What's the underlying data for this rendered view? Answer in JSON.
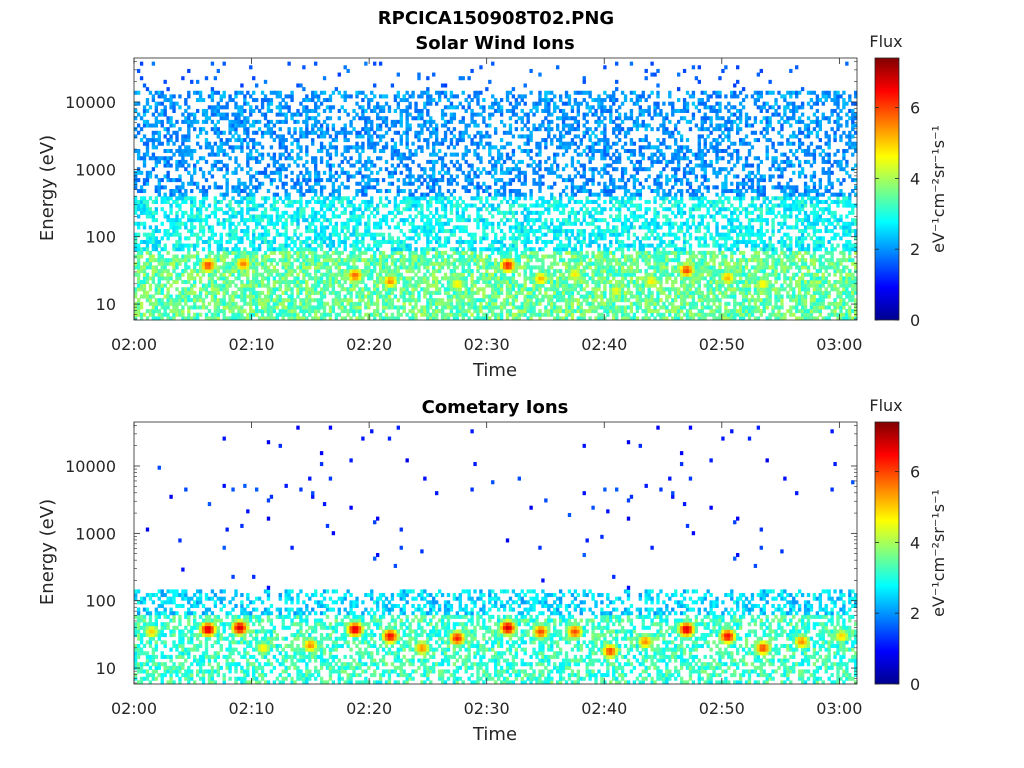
{
  "figure_title": "RPCICA150908T02.PNG",
  "colorbar": {
    "title": "Flux",
    "label": "eV⁻¹cm⁻²sr⁻¹s⁻¹",
    "ticks": [
      "0",
      "2",
      "4",
      "6"
    ],
    "range": [
      0,
      7.4
    ],
    "colormap": "jet"
  },
  "chart_data": [
    {
      "type": "heatmap",
      "title": "Solar Wind Ions",
      "xlabel": "Time",
      "ylabel": "Energy (eV)",
      "x_ticks": [
        "02:00",
        "02:10",
        "02:20",
        "02:30",
        "02:40",
        "02:50",
        "03:00"
      ],
      "y_ticks": [
        "10",
        "100",
        "1000",
        "10000"
      ],
      "xlim_minutes": [
        0,
        61.5
      ],
      "ylim_eV": [
        5.8,
        45000
      ],
      "y_scale": "log",
      "flux_range": [
        0,
        7.4
      ],
      "structure": {
        "low_energy_band_eV": [
          6,
          60
        ],
        "low_energy_flux": 3.5,
        "medium_band_eV": [
          60,
          400
        ],
        "medium_flux": 2.8,
        "high_band_eV": [
          400,
          15000
        ],
        "high_flux": 2.0,
        "sparse_band_eV": [
          15000,
          40000
        ],
        "sparse_flux": 1.6
      },
      "peaks": [
        {
          "t": 6.3,
          "e": 38,
          "flux": 6.0
        },
        {
          "t": 9.3,
          "e": 40,
          "flux": 5.6
        },
        {
          "t": 18.8,
          "e": 27,
          "flux": 5.8
        },
        {
          "t": 21.8,
          "e": 22,
          "flux": 5.5
        },
        {
          "t": 27.5,
          "e": 20,
          "flux": 4.8
        },
        {
          "t": 31.8,
          "e": 38,
          "flux": 6.3
        },
        {
          "t": 34.6,
          "e": 24,
          "flux": 5.2
        },
        {
          "t": 37.5,
          "e": 28,
          "flux": 4.8
        },
        {
          "t": 41.0,
          "e": 16,
          "flux": 4.6
        },
        {
          "t": 44.0,
          "e": 22,
          "flux": 4.8
        },
        {
          "t": 47.0,
          "e": 32,
          "flux": 6.0
        },
        {
          "t": 50.5,
          "e": 25,
          "flux": 5.2
        },
        {
          "t": 53.5,
          "e": 20,
          "flux": 4.8
        }
      ]
    },
    {
      "type": "heatmap",
      "title": "Cometary Ions",
      "xlabel": "Time",
      "ylabel": "Energy (eV)",
      "x_ticks": [
        "02:00",
        "02:10",
        "02:20",
        "02:30",
        "02:40",
        "02:50",
        "03:00"
      ],
      "y_ticks": [
        "10",
        "100",
        "1000",
        "10000"
      ],
      "xlim_minutes": [
        0,
        61.5
      ],
      "ylim_eV": [
        5.8,
        45000
      ],
      "y_scale": "log",
      "flux_range": [
        0,
        7.4
      ],
      "structure": {
        "low_energy_band_eV": [
          6,
          60
        ],
        "low_energy_flux": 3.2,
        "medium_band_eV": [
          60,
          150
        ],
        "medium_flux": 2.5,
        "high_band_eV": [
          300,
          12000
        ],
        "high_flux": 1.2,
        "sparse_band_eV": [
          12000,
          40000
        ],
        "sparse_flux": 1.0
      },
      "peaks": [
        {
          "t": 1.5,
          "e": 35,
          "flux": 5.0
        },
        {
          "t": 6.3,
          "e": 38,
          "flux": 6.8
        },
        {
          "t": 9.0,
          "e": 40,
          "flux": 6.8
        },
        {
          "t": 11.0,
          "e": 20,
          "flux": 4.8
        },
        {
          "t": 15.0,
          "e": 22,
          "flux": 5.5
        },
        {
          "t": 18.8,
          "e": 38,
          "flux": 6.8
        },
        {
          "t": 21.8,
          "e": 30,
          "flux": 6.5
        },
        {
          "t": 24.5,
          "e": 20,
          "flux": 5.5
        },
        {
          "t": 27.5,
          "e": 28,
          "flux": 6.3
        },
        {
          "t": 31.8,
          "e": 40,
          "flux": 6.8
        },
        {
          "t": 34.6,
          "e": 35,
          "flux": 6.0
        },
        {
          "t": 37.5,
          "e": 35,
          "flux": 6.0
        },
        {
          "t": 40.5,
          "e": 18,
          "flux": 6.0
        },
        {
          "t": 43.5,
          "e": 25,
          "flux": 5.5
        },
        {
          "t": 47.0,
          "e": 38,
          "flux": 6.8
        },
        {
          "t": 50.5,
          "e": 30,
          "flux": 6.5
        },
        {
          "t": 53.5,
          "e": 20,
          "flux": 6.0
        },
        {
          "t": 56.8,
          "e": 25,
          "flux": 5.5
        },
        {
          "t": 60.2,
          "e": 30,
          "flux": 5.0
        }
      ]
    }
  ]
}
